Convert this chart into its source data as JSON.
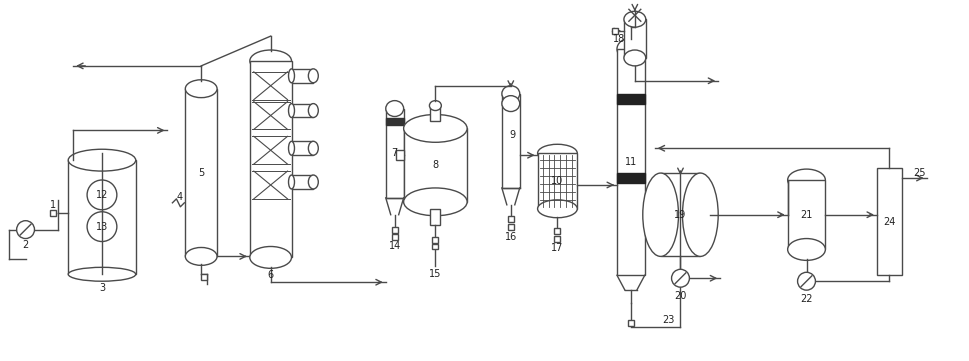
{
  "bg_color": "#ffffff",
  "line_color": "#4a4a4a",
  "figsize": [
    9.7,
    3.61
  ],
  "dpi": 100
}
